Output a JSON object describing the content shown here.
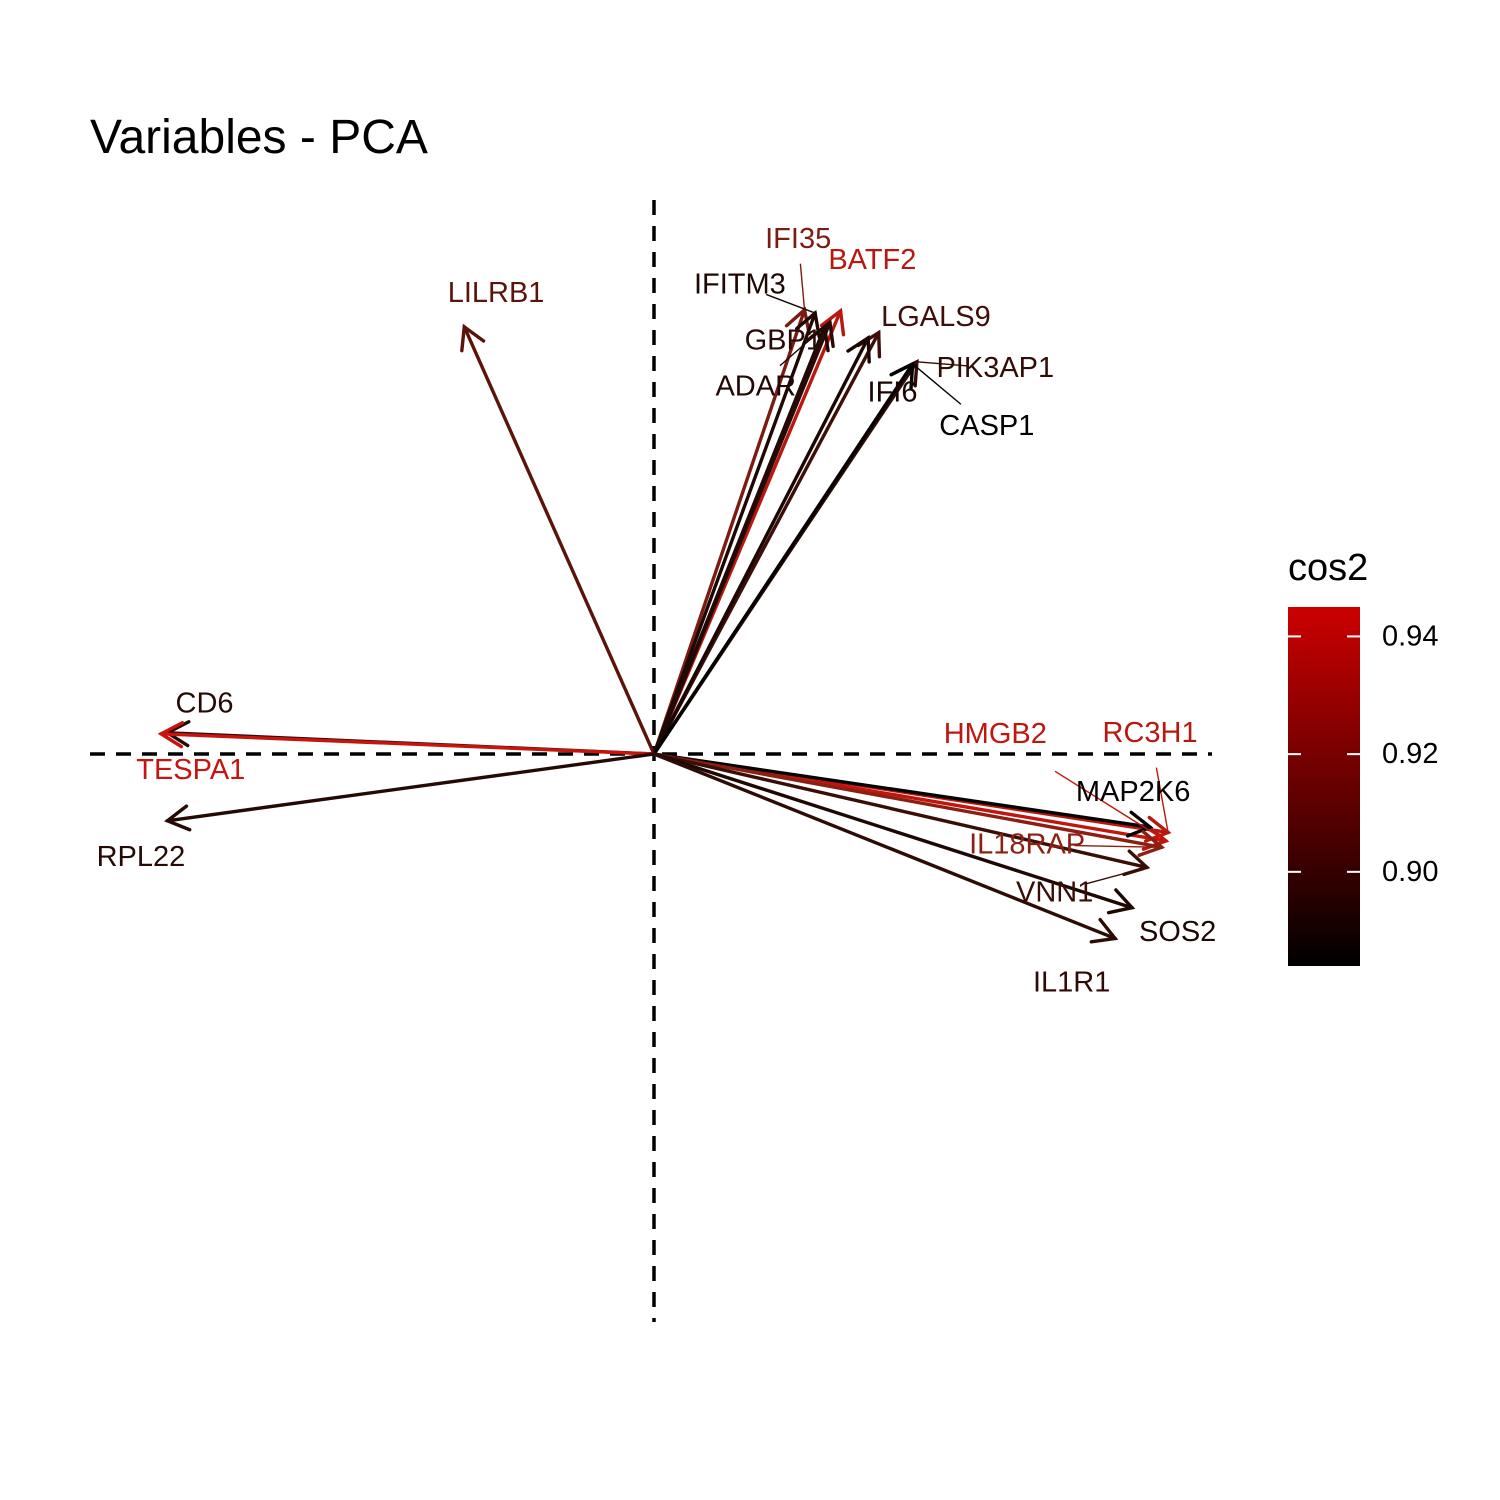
{
  "chart_data": {
    "type": "biplot",
    "title": "Variables - PCA",
    "xlabel": "",
    "ylabel": "",
    "xlim": [
      -1.05,
      1.05
    ],
    "ylim": [
      -1.05,
      1.05
    ],
    "grid": false,
    "reference_lines": {
      "x": 0,
      "y": 0,
      "style": "dashed"
    },
    "legend": {
      "title": "cos2",
      "position": "right",
      "range": [
        0.884,
        0.945
      ],
      "ticks": [
        0.9,
        0.92,
        0.94
      ],
      "tick_labels": [
        "0.90",
        "0.92",
        "0.94"
      ],
      "low_color": "#000000",
      "high_color": "#cc0000"
    },
    "variables": [
      {
        "name": "LILRB1",
        "x": -0.358,
        "y": 0.806,
        "cos2": 0.911,
        "color": "#5a140a",
        "label_dx": 0.06,
        "label_dy": 0.064
      },
      {
        "name": "IFI35",
        "x": 0.284,
        "y": 0.838,
        "cos2": 0.925,
        "color": "#7a1c12",
        "label_dx": -0.012,
        "label_dy": 0.134
      },
      {
        "name": "IFITM3",
        "x": 0.304,
        "y": 0.832,
        "cos2": 0.895,
        "color": "#1e0804",
        "label_dx": -0.142,
        "label_dy": 0.054
      },
      {
        "name": "BATF2",
        "x": 0.352,
        "y": 0.836,
        "cos2": 0.94,
        "color": "#b8180e",
        "label_dx": 0.06,
        "label_dy": 0.096
      },
      {
        "name": "GBP1",
        "x": 0.332,
        "y": 0.814,
        "cos2": 0.899,
        "color": "#2a0a06",
        "label_dx": -0.088,
        "label_dy": -0.034
      },
      {
        "name": "ADAR",
        "x": 0.322,
        "y": 0.806,
        "cos2": 0.896,
        "color": "#210905",
        "label_dx": -0.13,
        "label_dy": -0.113
      },
      {
        "name": "LGALS9",
        "x": 0.424,
        "y": 0.795,
        "cos2": 0.906,
        "color": "#3e0f08",
        "label_dx": 0.108,
        "label_dy": 0.03
      },
      {
        "name": "IFI6",
        "x": 0.404,
        "y": 0.785,
        "cos2": 0.894,
        "color": "#1a0703",
        "label_dx": 0.046,
        "label_dy": -0.103
      },
      {
        "name": "PIK3AP1",
        "x": 0.496,
        "y": 0.74,
        "cos2": 0.902,
        "color": "#300d06",
        "label_dx": 0.148,
        "label_dy": -0.012
      },
      {
        "name": "CASP1",
        "x": 0.488,
        "y": 0.736,
        "cos2": 0.886,
        "color": "#030100",
        "label_dx": 0.14,
        "label_dy": -0.117
      },
      {
        "name": "CD6",
        "x": -0.918,
        "y": 0.04,
        "cos2": 0.898,
        "color": "#260a05",
        "label_dx": 0.07,
        "label_dy": 0.055
      },
      {
        "name": "TESPA1",
        "x": -0.93,
        "y": 0.038,
        "cos2": 0.944,
        "color": "#c8140c",
        "label_dx": 0.056,
        "label_dy": -0.068
      },
      {
        "name": "RPL22",
        "x": -0.918,
        "y": -0.126,
        "cos2": 0.897,
        "color": "#240a05",
        "label_dx": -0.05,
        "label_dy": -0.068
      },
      {
        "name": "HMGB2",
        "x": 0.966,
        "y": -0.164,
        "cos2": 0.942,
        "color": "#c0160d",
        "label_dx": -0.322,
        "label_dy": 0.202
      },
      {
        "name": "RC3H1",
        "x": 0.97,
        "y": -0.148,
        "cos2": 0.94,
        "color": "#b8180e",
        "label_dx": -0.034,
        "label_dy": 0.188
      },
      {
        "name": "MAP2K6",
        "x": 0.936,
        "y": -0.138,
        "cos2": 0.886,
        "color": "#050201",
        "label_dx": -0.032,
        "label_dy": 0.066
      },
      {
        "name": "IL18RAP",
        "x": 0.958,
        "y": -0.176,
        "cos2": 0.928,
        "color": "#8c1e12",
        "label_dx": -0.254,
        "label_dy": 0.005
      },
      {
        "name": "VNN1",
        "x": 0.93,
        "y": -0.214,
        "cos2": 0.904,
        "color": "#380e07",
        "label_dx": -0.174,
        "label_dy": -0.047
      },
      {
        "name": "SOS2",
        "x": 0.902,
        "y": -0.29,
        "cos2": 0.895,
        "color": "#1e0804",
        "label_dx": 0.086,
        "label_dy": -0.046
      },
      {
        "name": "IL1R1",
        "x": 0.87,
        "y": -0.348,
        "cos2": 0.901,
        "color": "#2d0b06",
        "label_dx": -0.082,
        "label_dy": -0.083
      }
    ]
  }
}
